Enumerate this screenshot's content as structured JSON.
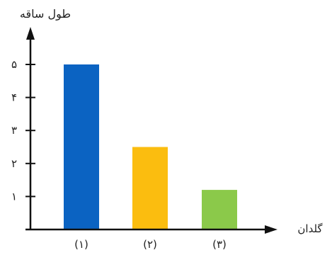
{
  "chart_data": {
    "type": "bar",
    "ylabel": "طول ساقه",
    "xlabel": "گلدان",
    "categories": [
      "(۱)",
      "(۲)",
      "(۳)"
    ],
    "values": [
      5,
      2.5,
      1.2
    ],
    "colors": [
      "#0b63c2",
      "#fbbd0f",
      "#8bc94a"
    ],
    "yticks": [
      "۱",
      "۲",
      "۳",
      "۴",
      "۵"
    ],
    "ylim": [
      0,
      5.8
    ],
    "grid": false
  }
}
